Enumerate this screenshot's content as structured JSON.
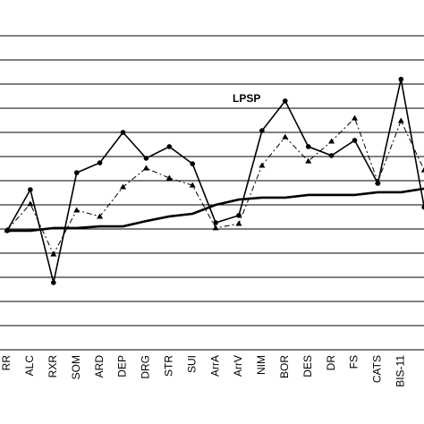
{
  "chart_data": {
    "type": "line",
    "categories": [
      "RR",
      "ALC",
      "RXR",
      "SOM",
      "ARD",
      "DEP",
      "DRG",
      "STR",
      "SUI",
      "ArrA",
      "ArrV",
      "NIM",
      "BOR",
      "DES",
      "DR",
      "FS",
      "CATS",
      "BIS-11",
      null
    ],
    "series": [
      {
        "color": "#000000",
        "marker": "circle",
        "dash": "none",
        "width": 1.6,
        "values": [
          4.93,
          6.63,
          2.78,
          7.33,
          7.74,
          9.0,
          7.93,
          8.41,
          7.7,
          5.26,
          5.56,
          9.07,
          10.3,
          8.41,
          8.04,
          8.67,
          6.89,
          11.2,
          5.9
        ]
      },
      {
        "color": "#000000",
        "marker": "triangle",
        "dash": "6 3 2 3",
        "width": 1,
        "values": [
          4.96,
          6.04,
          3.96,
          5.78,
          5.52,
          6.74,
          7.52,
          7.11,
          6.81,
          5.04,
          5.22,
          7.63,
          8.81,
          7.81,
          8.63,
          9.59,
          6.96,
          9.48,
          7.44
        ]
      },
      {
        "color": "#000000",
        "marker": "none",
        "dash": "none",
        "width": 2.6,
        "values": [
          4.93,
          4.93,
          5.04,
          5.04,
          5.11,
          5.11,
          5.33,
          5.52,
          5.63,
          6.0,
          6.22,
          6.3,
          6.3,
          6.41,
          6.41,
          6.41,
          6.52,
          6.52,
          6.67
        ]
      }
    ],
    "annotations": [
      "LPSP"
    ],
    "ylim": [
      0,
      14
    ],
    "yticks": [
      0,
      1,
      2,
      3,
      4,
      5,
      6,
      7,
      8,
      9,
      10,
      11,
      12,
      13
    ],
    "grid": true
  }
}
